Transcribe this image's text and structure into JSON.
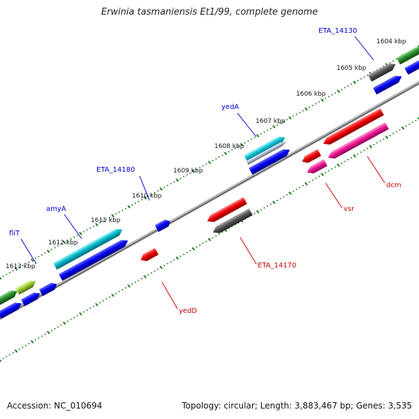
{
  "title": "Erwinia tasmaniensis Et1/99, complete genome",
  "footer": {
    "accession": "Accession: NC_010694",
    "summary": "Topology: circular; Length: 3,883,467 bp; Genes: 3,535"
  },
  "tick_labels": [
    "1604 kbp",
    "1605 kbp",
    "1606 kbp",
    "1607 kbp",
    "1608 kbp",
    "1609 kbp",
    "1610 kbp",
    "1611 kbp",
    "1612 kbp",
    "1613 kbp"
  ],
  "gene_labels_plus": [
    "ETA_14130",
    "yedA",
    "ETA_14180",
    "amyA",
    "fliT"
  ],
  "gene_labels_minus": [
    "dcm",
    "vsr",
    "ETA_14170",
    "yedD"
  ],
  "colors": {
    "plus_label": "#0000cc",
    "minus_label": "#cc0000",
    "ticks": "#1a7a1a",
    "backbone": "#8a8a8a",
    "blue": "#0000ee",
    "red": "#ee0000",
    "pink": "#ee1493",
    "gray": "#555555",
    "cyan": "#00b8c8",
    "green": "#2a8a2a",
    "lightgreen": "#9acd32"
  }
}
